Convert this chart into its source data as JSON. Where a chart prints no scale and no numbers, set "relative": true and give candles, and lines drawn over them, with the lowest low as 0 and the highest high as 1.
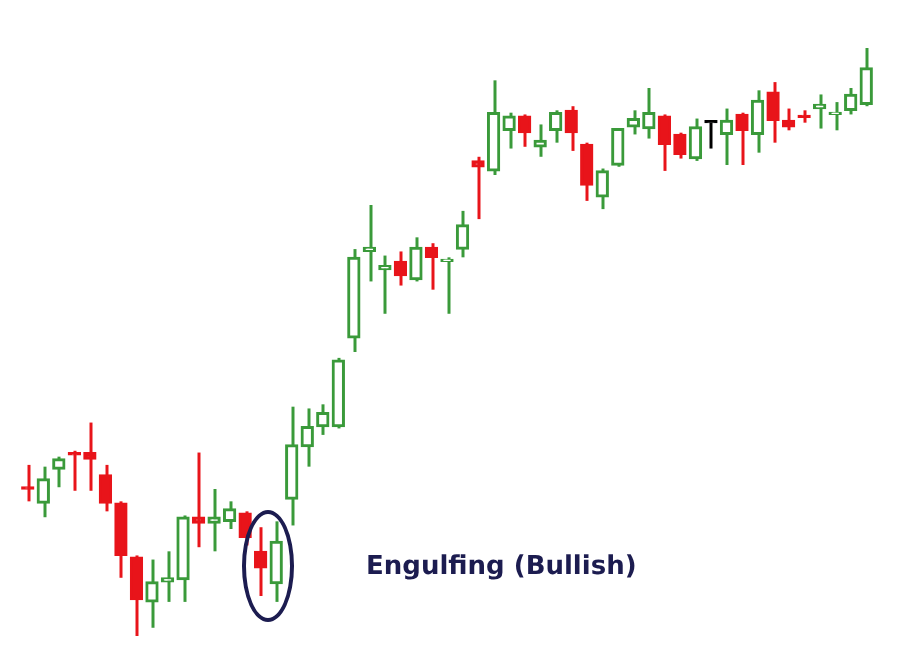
{
  "chart_data": {
    "type": "candlestick",
    "relative": true,
    "categories": [
      null,
      null,
      null,
      null,
      null,
      null,
      null,
      null,
      null,
      null,
      null,
      null,
      null,
      null,
      null,
      null,
      null,
      null,
      null,
      null,
      null,
      null,
      null,
      null,
      null,
      null,
      null,
      null,
      null,
      null,
      null,
      null,
      null,
      null,
      null,
      null,
      null,
      null,
      null,
      null,
      null,
      null,
      null,
      null,
      null,
      null,
      null,
      null,
      null,
      null,
      null,
      null,
      null,
      null,
      null
    ],
    "ohlc": [
      [
        0.253,
        0.291,
        0.229,
        0.25
      ],
      [
        0.226,
        0.288,
        0.202,
        0.267
      ],
      [
        0.284,
        0.305,
        0.253,
        0.301
      ],
      [
        0.312,
        0.315,
        0.247,
        0.308
      ],
      [
        0.312,
        0.363,
        0.247,
        0.301
      ],
      [
        0.274,
        0.291,
        0.212,
        0.226
      ],
      [
        0.226,
        0.229,
        0.099,
        0.137
      ],
      [
        0.134,
        0.137,
        0,
        0.062
      ],
      [
        0.058,
        0.13,
        0.014,
        0.092
      ],
      [
        0.092,
        0.144,
        0.058,
        0.099
      ],
      [
        0.096,
        0.205,
        0.058,
        0.202
      ],
      [
        0.202,
        0.312,
        0.151,
        0.192
      ],
      [
        0.192,
        0.25,
        0.144,
        0.202
      ],
      [
        0.195,
        0.229,
        0.182,
        0.216
      ],
      [
        0.209,
        0.212,
        0.154,
        0.168
      ],
      [
        0.144,
        0.185,
        0.068,
        0.116
      ],
      [
        0.089,
        0.195,
        0.058,
        0.161
      ],
      [
        0.233,
        0.39,
        0.188,
        0.325
      ],
      [
        0.322,
        0.387,
        0.288,
        0.356
      ],
      [
        0.356,
        0.394,
        0.342,
        0.38
      ],
      [
        0.356,
        0.473,
        0.353,
        0.469
      ],
      [
        0.507,
        0.658,
        0.483,
        0.644
      ],
      [
        0.654,
        0.733,
        0.603,
        0.661
      ],
      [
        0.623,
        0.647,
        0.548,
        0.63
      ],
      [
        0.637,
        0.654,
        0.596,
        0.613
      ],
      [
        0.606,
        0.678,
        0.603,
        0.661
      ],
      [
        0.661,
        0.668,
        0.589,
        0.644
      ],
      [
        0.637,
        0.644,
        0.548,
        0.64
      ],
      [
        0.658,
        0.723,
        0.644,
        0.699
      ],
      [
        0.808,
        0.815,
        0.709,
        0.798
      ],
      [
        0.791,
        0.945,
        0.784,
        0.89
      ],
      [
        0.86,
        0.89,
        0.829,
        0.884
      ],
      [
        0.884,
        0.887,
        0.832,
        0.856
      ],
      [
        0.832,
        0.87,
        0.815,
        0.843
      ],
      [
        0.86,
        0.894,
        0.839,
        0.89
      ],
      [
        0.894,
        0.901,
        0.825,
        0.856
      ],
      [
        0.836,
        0.839,
        0.74,
        0.767
      ],
      [
        0.747,
        0.795,
        0.726,
        0.791
      ],
      [
        0.801,
        0.863,
        0.798,
        0.863
      ],
      [
        0.866,
        0.894,
        0.853,
        0.88
      ],
      [
        0.863,
        0.932,
        0.846,
        0.89
      ],
      [
        0.884,
        0.887,
        0.791,
        0.836
      ],
      [
        0.853,
        0.856,
        0.812,
        0.819
      ],
      [
        0.812,
        0.88,
        0.808,
        0.866
      ],
      [
        0.873,
        0.873,
        0.829,
        0.873
      ],
      [
        0.853,
        0.897,
        0.801,
        0.877
      ],
      [
        0.887,
        0.89,
        0.801,
        0.86
      ],
      [
        0.853,
        0.928,
        0.822,
        0.911
      ],
      [
        0.925,
        0.942,
        0.839,
        0.877
      ],
      [
        0.877,
        0.897,
        0.86,
        0.866
      ],
      [
        0.884,
        0.894,
        0.873,
        0.882
      ],
      [
        0.897,
        0.921,
        0.863,
        0.904
      ],
      [
        0.887,
        0.908,
        0.86,
        0.89
      ],
      [
        0.894,
        0.932,
        0.887,
        0.921
      ],
      [
        0.904,
        1,
        0.901,
        0.966
      ]
    ],
    "colors": [
      "#e8141a",
      "#3a9a3a",
      "#3a9a3a",
      "#e8141a",
      "#e8141a",
      "#e8141a",
      "#e8141a",
      "#e8141a",
      "#3a9a3a",
      "#3a9a3a",
      "#3a9a3a",
      "#e8141a",
      "#3a9a3a",
      "#3a9a3a",
      "#e8141a",
      "#e8141a",
      "#3a9a3a",
      "#3a9a3a",
      "#3a9a3a",
      "#3a9a3a",
      "#3a9a3a",
      "#3a9a3a",
      "#3a9a3a",
      "#3a9a3a",
      "#e8141a",
      "#3a9a3a",
      "#e8141a",
      "#3a9a3a",
      "#3a9a3a",
      "#e8141a",
      "#3a9a3a",
      "#3a9a3a",
      "#e8141a",
      "#3a9a3a",
      "#3a9a3a",
      "#e8141a",
      "#e8141a",
      "#3a9a3a",
      "#3a9a3a",
      "#3a9a3a",
      "#3a9a3a",
      "#e8141a",
      "#e8141a",
      "#3a9a3a",
      "#000000",
      "#3a9a3a",
      "#e8141a",
      "#3a9a3a",
      "#e8141a",
      "#e8141a",
      "#e8141a",
      "#3a9a3a",
      "#3a9a3a",
      "#3a9a3a",
      "#3a9a3a"
    ],
    "annotations": [
      "Engulfing (Bullish)"
    ]
  }
}
